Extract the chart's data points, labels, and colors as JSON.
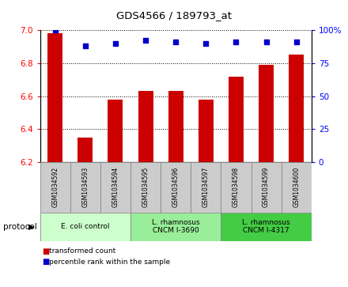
{
  "title": "GDS4566 / 189793_at",
  "samples": [
    "GSM1034592",
    "GSM1034593",
    "GSM1034594",
    "GSM1034595",
    "GSM1034596",
    "GSM1034597",
    "GSM1034598",
    "GSM1034599",
    "GSM1034600"
  ],
  "bar_values": [
    6.98,
    6.35,
    6.58,
    6.63,
    6.63,
    6.58,
    6.72,
    6.79,
    6.85
  ],
  "bar_color": "#cc0000",
  "dot_values": [
    100,
    88,
    90,
    92,
    91,
    90,
    91,
    91,
    91
  ],
  "dot_color": "#0000cc",
  "ylim_left": [
    6.2,
    7.0
  ],
  "yticks_left": [
    6.2,
    6.4,
    6.6,
    6.8,
    7.0
  ],
  "ylim_right": [
    0,
    100
  ],
  "yticks_right": [
    0,
    25,
    50,
    75,
    100
  ],
  "yticklabels_right": [
    "0",
    "25",
    "50",
    "75",
    "100%"
  ],
  "protocols": [
    {
      "label": "E. coli control",
      "start": 0,
      "end": 3,
      "color": "#ccffcc"
    },
    {
      "label": "L. rhamnosus\nCNCM I-3690",
      "start": 3,
      "end": 6,
      "color": "#99ee99"
    },
    {
      "label": "L. rhamnosus\nCNCM I-4317",
      "start": 6,
      "end": 9,
      "color": "#44cc44"
    }
  ],
  "legend_items": [
    {
      "label": "transformed count",
      "color": "#cc0000"
    },
    {
      "label": "percentile rank within the sample",
      "color": "#0000cc"
    }
  ],
  "protocol_label": "protocol",
  "bar_bottom": 6.2,
  "sample_box_color": "#cccccc",
  "bar_width": 0.5
}
